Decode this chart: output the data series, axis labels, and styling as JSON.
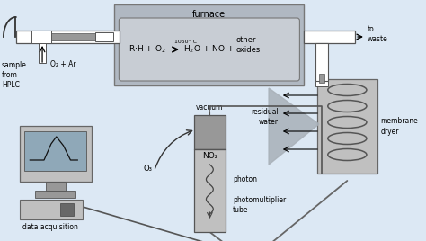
{
  "bg_color": "#dce8f4",
  "furnace_color": "#b0b8c2",
  "furnace_inner_color": "#c8cdd4",
  "gray_light": "#c0c0c0",
  "gray_mid": "#989898",
  "gray_dark": "#686868",
  "white": "#ffffff",
  "furnace_label": "furnace",
  "reaction_lhs": "R·H + O₂",
  "temp_text": "1050° C",
  "reaction_rhs": "H₂O + NO +",
  "other_text": "other\noxides",
  "sample_label": "sample\nfrom\nHPLC",
  "o2_ar_label": "O₂ + Ar",
  "o3_label": "O₃",
  "vacuum_label": "vacuum",
  "no2_label": "NO₂",
  "photon_label": "photon",
  "pmt_label": "photomultiplier\ntube",
  "residual_label": "residual\nwater",
  "membrane_label": "membrane\ndryer",
  "to_waste_label": "to\nwaste",
  "data_acq_label": "data acquisition"
}
